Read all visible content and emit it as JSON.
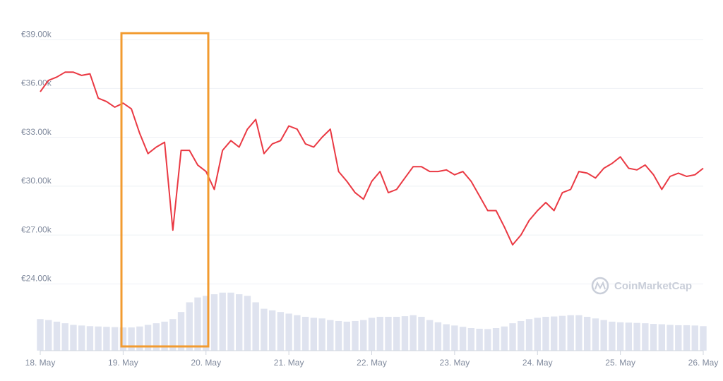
{
  "chart_data": {
    "type": "line",
    "watermark": "CoinMarketCap",
    "xlim": [
      18,
      26
    ],
    "xticks": [
      {
        "value": 18,
        "label": "18. May"
      },
      {
        "value": 19,
        "label": "19. May"
      },
      {
        "value": 20,
        "label": "20. May"
      },
      {
        "value": 21,
        "label": "21. May"
      },
      {
        "value": 22,
        "label": "22. May"
      },
      {
        "value": 23,
        "label": "23. May"
      },
      {
        "value": 24,
        "label": "24. May"
      },
      {
        "value": 25,
        "label": "25. May"
      },
      {
        "value": 26,
        "label": "26. May"
      }
    ],
    "ylim": [
      19900,
      39700
    ],
    "yticks": [
      {
        "value": 24000,
        "label": "€24.00k"
      },
      {
        "value": 27000,
        "label": "€27.00k"
      },
      {
        "value": 30000,
        "label": "€30.00k"
      },
      {
        "value": 33000,
        "label": "€33.00k"
      },
      {
        "value": 36000,
        "label": "€36.00k"
      },
      {
        "value": 39000,
        "label": "€39.00k"
      }
    ],
    "y2lim": [
      0,
      100
    ],
    "grid": true,
    "x": [
      18,
      18.1,
      18.2,
      18.3,
      18.4,
      18.5,
      18.6,
      18.7,
      18.8,
      18.9,
      19,
      19.1,
      19.2,
      19.3,
      19.4,
      19.5,
      19.6,
      19.7,
      19.8,
      19.9,
      20,
      20.1,
      20.2,
      20.3,
      20.4,
      20.5,
      20.6,
      20.7,
      20.8,
      20.9,
      21,
      21.1,
      21.2,
      21.3,
      21.4,
      21.5,
      21.6,
      21.7,
      21.8,
      21.9,
      22,
      22.1,
      22.2,
      22.3,
      22.4,
      22.5,
      22.6,
      22.7,
      22.8,
      22.9,
      23,
      23.1,
      23.2,
      23.3,
      23.4,
      23.5,
      23.6,
      23.7,
      23.8,
      23.9,
      24,
      24.1,
      24.2,
      24.3,
      24.4,
      24.5,
      24.6,
      24.7,
      24.8,
      24.9,
      25,
      25.1,
      25.2,
      25.3,
      25.4,
      25.5,
      25.6,
      25.7,
      25.8,
      25.9,
      26
    ],
    "series": [
      {
        "color": "#ea3943",
        "values": [
          35800,
          36500,
          36700,
          37000,
          37000,
          36800,
          36900,
          35400,
          35200,
          34850,
          35100,
          34750,
          33250,
          32000,
          32400,
          32700,
          27300,
          32200,
          32200,
          31300,
          30900,
          29800,
          32200,
          32800,
          32400,
          33500,
          34100,
          32000,
          32600,
          32800,
          33700,
          33500,
          32600,
          32400,
          33000,
          33500,
          30900,
          30300,
          29600,
          29200,
          30300,
          30900,
          29600,
          29800,
          30500,
          31200,
          31200,
          30900,
          30900,
          31000,
          30700,
          30900,
          30300,
          29400,
          28500,
          28500,
          27500,
          26400,
          27000,
          27900,
          28500,
          29000,
          28500,
          29600,
          29800,
          30900,
          30800,
          30500,
          31100,
          31400,
          31800,
          31100,
          31000,
          31300,
          30700,
          29800,
          30600,
          30800,
          30600,
          30700,
          31100
        ]
      },
      {
        "color": "#dfe3ef",
        "axis": "y2",
        "values": [
          9.8,
          9.5,
          9,
          8.5,
          8,
          7.8,
          7.6,
          7.5,
          7.4,
          7.3,
          7.2,
          7.2,
          7.5,
          8,
          8.5,
          9,
          9.8,
          12,
          15,
          16.5,
          17,
          17.5,
          18,
          18,
          17.5,
          17,
          15,
          13,
          12.5,
          12,
          11.5,
          11,
          10.5,
          10.2,
          10,
          9.5,
          9.2,
          9,
          9.2,
          9.5,
          10.2,
          10.5,
          10.5,
          10.5,
          10.7,
          11,
          10.5,
          9.5,
          8.8,
          8.2,
          7.8,
          7.4,
          7,
          6.8,
          6.7,
          7,
          7.5,
          8.5,
          9.2,
          9.8,
          10.2,
          10.5,
          10.6,
          10.8,
          11,
          11,
          10.5,
          10,
          9.5,
          9,
          8.8,
          8.7,
          8.6,
          8.5,
          8.3,
          8.2,
          8,
          7.9,
          7.9,
          7.8,
          7.6
        ]
      }
    ]
  }
}
